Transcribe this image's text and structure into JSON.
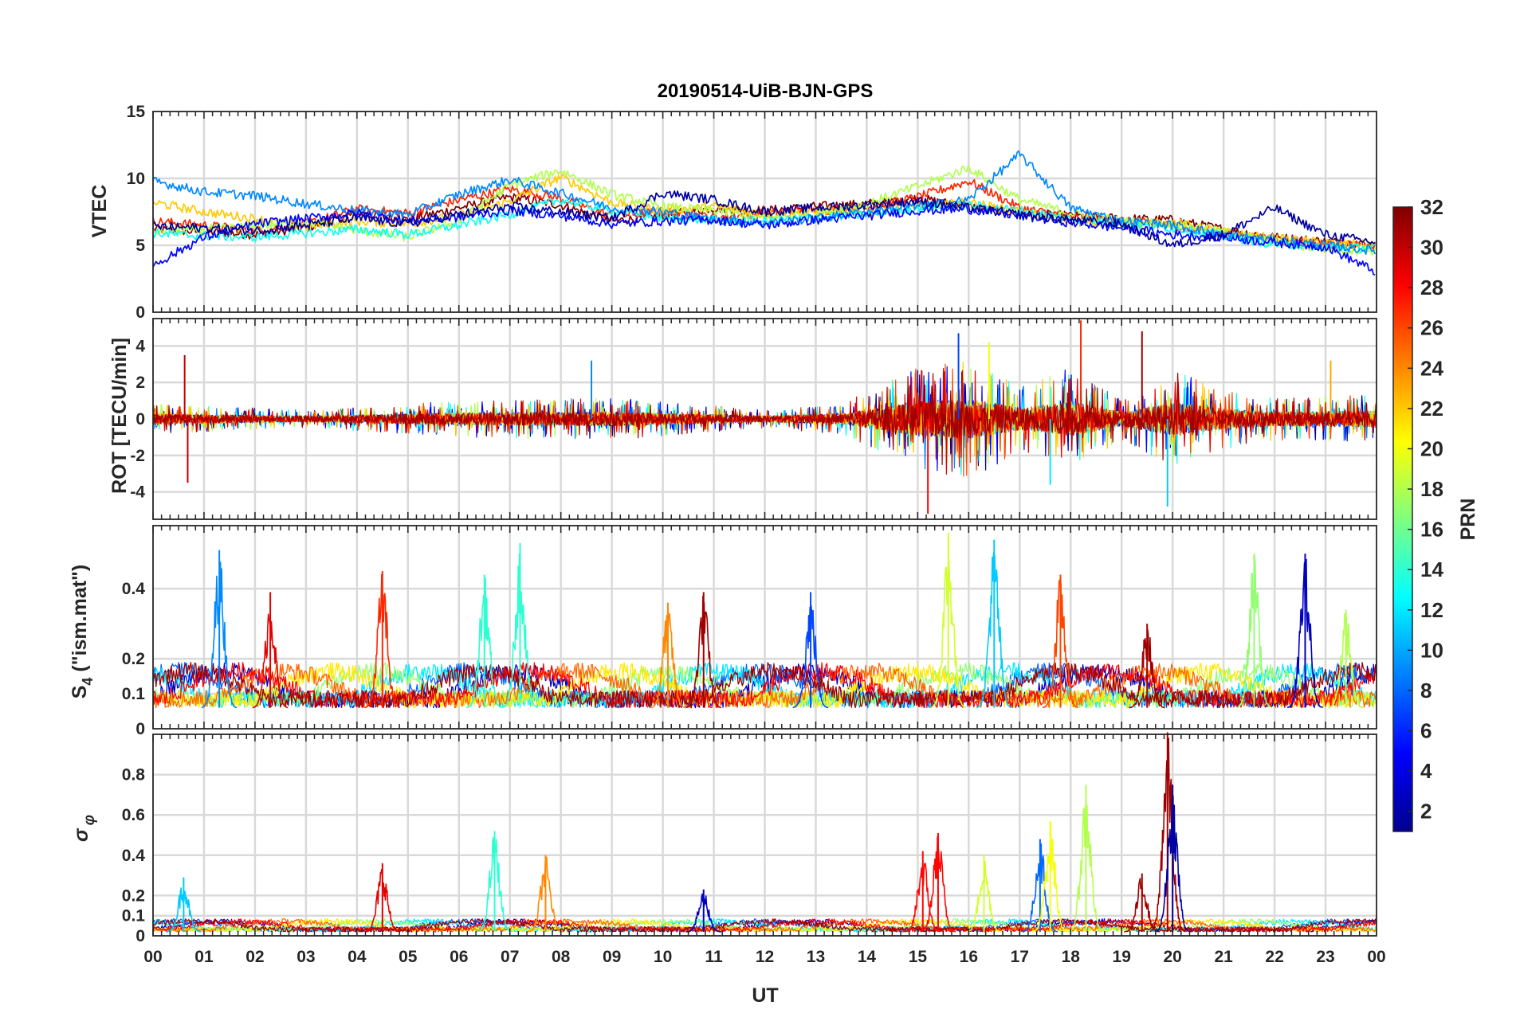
{
  "chart_data": {
    "type": "line",
    "title": "20190514-UiB-BJN-GPS",
    "xlabel": "UT",
    "x_range_hours": [
      0,
      24
    ],
    "x_tick_labels": [
      "00",
      "01",
      "02",
      "03",
      "04",
      "05",
      "06",
      "07",
      "08",
      "09",
      "10",
      "11",
      "12",
      "13",
      "14",
      "15",
      "16",
      "17",
      "18",
      "19",
      "20",
      "21",
      "22",
      "23",
      "00"
    ],
    "grid": true,
    "colorbar": {
      "label": "PRN",
      "range": [
        1,
        32
      ],
      "tick_values": [
        2,
        4,
        6,
        8,
        10,
        12,
        14,
        16,
        18,
        20,
        22,
        24,
        26,
        28,
        30,
        32
      ],
      "tick_labels": [
        "2",
        "4",
        "6",
        "8",
        "10",
        "12",
        "14",
        "16",
        "18",
        "20",
        "22",
        "24",
        "26",
        "28",
        "30",
        "32"
      ],
      "colormap": "jet",
      "placement": "right"
    },
    "panels": [
      {
        "id": "vtec",
        "ylabel": "VTEC",
        "ylim": [
          0,
          15
        ],
        "y_ticks": [
          0,
          5,
          10,
          15
        ],
        "y_tick_labels": [
          "0",
          "5",
          "10",
          "15"
        ],
        "baseline_profile": [
          [
            0,
            6.5
          ],
          [
            2,
            6.3
          ],
          [
            4,
            7.2
          ],
          [
            6,
            7.6
          ],
          [
            8,
            8.3
          ],
          [
            10,
            7.4
          ],
          [
            12,
            7.3
          ],
          [
            14,
            7.9
          ],
          [
            16,
            7.7
          ],
          [
            18,
            7.0
          ],
          [
            20,
            6.3
          ],
          [
            22,
            5.3
          ],
          [
            24,
            5.0
          ]
        ],
        "noise_amplitude": 0.7,
        "series": [
          {
            "prn": 32,
            "x": [
              0,
              1,
              2,
              3,
              4,
              5,
              6,
              7,
              8,
              9,
              10,
              11,
              12,
              13,
              14,
              15,
              16,
              17,
              18,
              19,
              20,
              21,
              22,
              23,
              24
            ],
            "y": [
              6.2,
              6.0,
              5.8,
              6.3,
              7.4,
              6.9,
              7.8,
              8.6,
              8.0,
              6.8,
              7.2,
              7.8,
              7.6,
              7.9,
              8.1,
              8.5,
              7.9,
              7.4,
              7.2,
              7.0,
              6.9,
              6.2,
              5.6,
              5.3,
              5.0
            ]
          },
          {
            "prn": 27,
            "x": [
              0,
              1,
              2,
              3,
              4,
              5,
              6,
              7,
              8,
              9,
              10,
              11,
              12,
              13,
              14,
              15,
              16,
              17,
              18,
              19,
              20,
              21,
              22,
              23,
              24
            ],
            "y": [
              6.8,
              6.5,
              6.1,
              6.6,
              7.7,
              7.4,
              8.4,
              9.2,
              8.5,
              7.2,
              7.5,
              7.1,
              7.4,
              7.6,
              7.8,
              8.6,
              9.8,
              7.8,
              7.1,
              6.8,
              6.5,
              5.9,
              5.4,
              5.1,
              4.9
            ]
          },
          {
            "prn": 22,
            "x": [
              0,
              1,
              2,
              3,
              4,
              5,
              6,
              7,
              8,
              9,
              10,
              11,
              12,
              13,
              14,
              15,
              16,
              17,
              18,
              19,
              20,
              21,
              22,
              23,
              24
            ],
            "y": [
              8.2,
              7.5,
              7.0,
              6.4,
              6.8,
              6.6,
              7.2,
              8.3,
              10.1,
              8.2,
              7.6,
              7.9,
              7.3,
              7.5,
              7.4,
              7.9,
              8.2,
              7.5,
              6.8,
              6.5,
              6.7,
              6.0,
              5.5,
              5.2,
              5.0
            ]
          },
          {
            "prn": 18,
            "x": [
              0,
              1,
              2,
              3,
              4,
              5,
              6,
              7,
              8,
              9,
              10,
              11,
              12,
              13,
              14,
              15,
              16,
              17,
              18,
              19,
              20,
              21,
              22,
              23,
              24
            ],
            "y": [
              6.0,
              6.2,
              6.4,
              6.8,
              6.1,
              5.6,
              6.8,
              9.5,
              10.6,
              8.8,
              7.9,
              7.6,
              7.0,
              7.4,
              8.1,
              9.4,
              10.8,
              8.4,
              7.4,
              6.8,
              6.6,
              6.0,
              5.2,
              4.7,
              4.6
            ]
          },
          {
            "prn": 13,
            "x": [
              0,
              1,
              2,
              3,
              4,
              5,
              6,
              7,
              8,
              9,
              10,
              11,
              12,
              13,
              14,
              15,
              16,
              17,
              18,
              19,
              20,
              21,
              22,
              23,
              24
            ],
            "y": [
              5.9,
              5.7,
              5.6,
              5.9,
              6.2,
              5.8,
              6.5,
              7.3,
              8.4,
              7.6,
              7.0,
              6.9,
              6.8,
              7.1,
              7.3,
              7.8,
              8.0,
              7.6,
              7.0,
              6.6,
              6.3,
              5.7,
              5.1,
              4.9,
              4.8
            ]
          },
          {
            "prn": 9,
            "x": [
              0,
              1,
              2,
              3,
              4,
              5,
              6,
              7,
              8,
              9,
              10,
              11,
              12,
              13,
              14,
              15,
              16,
              17,
              18,
              19,
              20,
              21,
              22,
              23,
              24
            ],
            "y": [
              9.8,
              9.0,
              8.7,
              8.1,
              7.6,
              7.3,
              8.8,
              9.9,
              8.9,
              7.8,
              7.5,
              6.9,
              6.7,
              7.0,
              7.5,
              7.9,
              8.4,
              11.8,
              7.8,
              6.8,
              6.5,
              5.8,
              5.4,
              5.0,
              4.6
            ]
          },
          {
            "prn": 5,
            "x": [
              0,
              1,
              2,
              3,
              4,
              5,
              6,
              7,
              8,
              9,
              10,
              11,
              12,
              13,
              14,
              15,
              16,
              17,
              18,
              19,
              20,
              21,
              22,
              23,
              24
            ],
            "y": [
              3.5,
              5.6,
              6.6,
              7.0,
              7.4,
              6.8,
              7.1,
              7.6,
              7.2,
              6.6,
              6.8,
              6.9,
              6.5,
              6.9,
              7.2,
              7.6,
              7.7,
              7.2,
              6.7,
              6.3,
              5.8,
              5.6,
              5.2,
              4.9,
              3.0
            ]
          },
          {
            "prn": 2,
            "x": [
              0,
              1,
              2,
              3,
              4,
              5,
              6,
              7,
              8,
              9,
              10,
              11,
              12,
              13,
              14,
              15,
              16,
              17,
              18,
              19,
              20,
              21,
              22,
              23,
              24
            ],
            "y": [
              6.4,
              6.3,
              6.1,
              6.5,
              7.0,
              6.6,
              7.3,
              7.9,
              7.5,
              7.0,
              8.9,
              8.4,
              7.5,
              7.8,
              8.0,
              8.3,
              7.8,
              7.3,
              6.9,
              6.6,
              5.0,
              5.8,
              7.8,
              5.8,
              5.2
            ]
          }
        ]
      },
      {
        "id": "rot",
        "ylabel": "ROT [TECU/min]",
        "ylim": [
          -5.5,
          5.5
        ],
        "y_ticks": [
          -4,
          -2,
          0,
          2,
          4
        ],
        "y_tick_labels": [
          "-4",
          "-2",
          "0",
          "2",
          "4"
        ],
        "baseline_profile": [
          [
            0,
            0
          ],
          [
            24,
            0
          ]
        ],
        "activity_profile": [
          [
            0,
            0.25
          ],
          [
            3,
            0.15
          ],
          [
            6,
            0.3
          ],
          [
            9,
            0.35
          ],
          [
            12,
            0.15
          ],
          [
            13.5,
            0.25
          ],
          [
            15,
            0.85
          ],
          [
            16,
            1.0
          ],
          [
            17,
            0.55
          ],
          [
            18,
            0.85
          ],
          [
            19,
            0.35
          ],
          [
            20,
            0.8
          ],
          [
            21,
            0.5
          ],
          [
            22,
            0.35
          ],
          [
            24,
            0.4
          ]
        ],
        "spikes": [
          {
            "x": 0.62,
            "y": 3.5,
            "prn": 30
          },
          {
            "x": 0.68,
            "y": -3.5,
            "prn": 30
          },
          {
            "x": 8.6,
            "y": 3.2,
            "prn": 9
          },
          {
            "x": 15.2,
            "y": -5.2,
            "prn": 28
          },
          {
            "x": 15.8,
            "y": 4.7,
            "prn": 7
          },
          {
            "x": 16.4,
            "y": 4.2,
            "prn": 20
          },
          {
            "x": 17.6,
            "y": -3.6,
            "prn": 12
          },
          {
            "x": 18.2,
            "y": 5.4,
            "prn": 27
          },
          {
            "x": 19.4,
            "y": 4.8,
            "prn": 31
          },
          {
            "x": 19.9,
            "y": -4.8,
            "prn": 11
          },
          {
            "x": 23.1,
            "y": 3.2,
            "prn": 23
          }
        ]
      },
      {
        "id": "s4",
        "ylabel": "S4 (\"ism.mat\")",
        "ylim": [
          0,
          0.58
        ],
        "y_ticks": [
          0,
          0.1,
          0.2,
          0.4
        ],
        "y_tick_labels": [
          "0",
          "0.1",
          "0.2",
          "0.4"
        ],
        "baseline": 0.06,
        "bursts": [
          {
            "x": 1.3,
            "height": 0.45,
            "prn": 9
          },
          {
            "x": 2.3,
            "height": 0.33,
            "prn": 29
          },
          {
            "x": 4.5,
            "height": 0.39,
            "prn": 27
          },
          {
            "x": 6.5,
            "height": 0.38,
            "prn": 14
          },
          {
            "x": 7.2,
            "height": 0.47,
            "prn": 14
          },
          {
            "x": 10.1,
            "height": 0.3,
            "prn": 24
          },
          {
            "x": 10.8,
            "height": 0.33,
            "prn": 31
          },
          {
            "x": 12.9,
            "height": 0.33,
            "prn": 7
          },
          {
            "x": 15.6,
            "height": 0.5,
            "prn": 19
          },
          {
            "x": 16.5,
            "height": 0.48,
            "prn": 11
          },
          {
            "x": 17.8,
            "height": 0.38,
            "prn": 26
          },
          {
            "x": 19.5,
            "height": 0.24,
            "prn": 31
          },
          {
            "x": 21.6,
            "height": 0.44,
            "prn": 17
          },
          {
            "x": 22.6,
            "height": 0.44,
            "prn": 3
          },
          {
            "x": 23.4,
            "height": 0.28,
            "prn": 18
          }
        ]
      },
      {
        "id": "sigma_phi",
        "ylabel": "σφ",
        "ylim": [
          0,
          1.0
        ],
        "y_ticks": [
          0,
          0.1,
          0.2,
          0.4,
          0.6,
          0.8
        ],
        "y_tick_labels": [
          "0",
          "0.1",
          "0.2",
          "0.4",
          "0.6",
          "0.8"
        ],
        "baseline": 0.02,
        "bursts": [
          {
            "x": 0.6,
            "height": 0.27,
            "prn": 11
          },
          {
            "x": 4.5,
            "height": 0.34,
            "prn": 29
          },
          {
            "x": 6.7,
            "height": 0.5,
            "prn": 14
          },
          {
            "x": 7.7,
            "height": 0.38,
            "prn": 24
          },
          {
            "x": 10.8,
            "height": 0.21,
            "prn": 3
          },
          {
            "x": 15.1,
            "height": 0.4,
            "prn": 28
          },
          {
            "x": 15.4,
            "height": 0.49,
            "prn": 28
          },
          {
            "x": 16.3,
            "height": 0.38,
            "prn": 19
          },
          {
            "x": 17.4,
            "height": 0.46,
            "prn": 8
          },
          {
            "x": 17.6,
            "height": 0.55,
            "prn": 20
          },
          {
            "x": 18.3,
            "height": 0.73,
            "prn": 18
          },
          {
            "x": 19.4,
            "height": 0.29,
            "prn": 31
          },
          {
            "x": 19.9,
            "height": 0.99,
            "prn": 31
          },
          {
            "x": 20.0,
            "height": 0.73,
            "prn": 2
          }
        ]
      }
    ]
  }
}
